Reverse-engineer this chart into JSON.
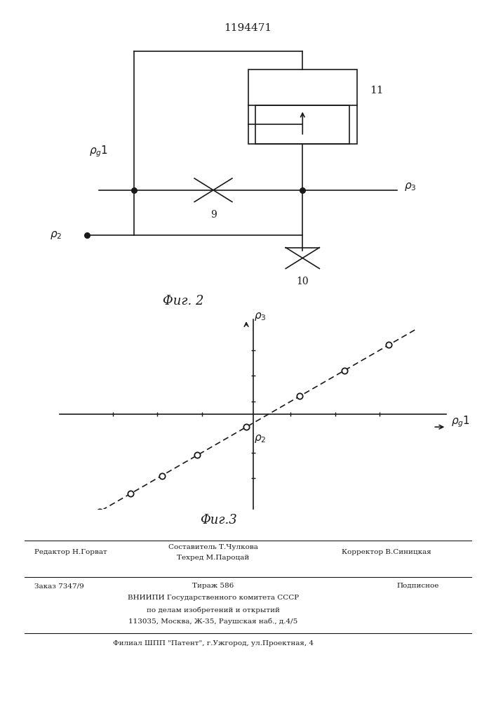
{
  "patent_number": "1194471",
  "line_color": "#1a1a1a",
  "fig2_caption": "Φиг. 2",
  "fig3_caption": "Φиг.3",
  "label_11": "11",
  "label_9": "9",
  "label_10": "10",
  "footer_line1_left": "Редактор Н.Горват",
  "footer_comp": "Составитель Т.Чулкова",
  "footer_tech": "Техред М.Пароцай",
  "footer_line1_right": "Корректор В.Синицкая",
  "footer_line2_left": "Заказ 7347/9",
  "footer_line2_mid": "Тираж 586",
  "footer_line2_right": "Подписное",
  "footer_line3": "ВНИИПИ Государственного комитета СССР",
  "footer_line4": "по делам изобретений и открытий",
  "footer_line5": "113035, Москва, Ж-35, Раушская наб., д.4/5",
  "footer_last": "Филиал ШПП \"Патент\", г.Ужгород, ул.Проектная, 4"
}
